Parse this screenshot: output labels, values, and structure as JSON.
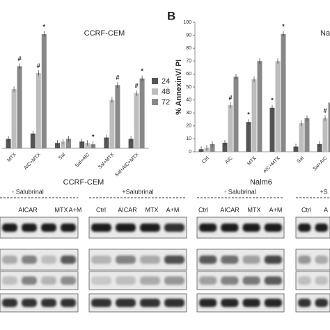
{
  "chart_data": [
    {
      "type": "bar",
      "title": "CCRF-CEM",
      "categories": [
        "MTX",
        "AIC+MTX",
        "Sal",
        "Sal+AIC",
        "Sal+MTX",
        "Sal+AIC+MTX"
      ],
      "series": [
        {
          "name": "24",
          "color": "#555555",
          "values": [
            7,
            11,
            4,
            5,
            8,
            7
          ]
        },
        {
          "name": "48",
          "color": "#bdbdbd",
          "values": [
            44,
            56,
            5,
            4,
            36,
            41
          ]
        },
        {
          "name": "72",
          "color": "#888888",
          "values": [
            61,
            85,
            7,
            3,
            47,
            52
          ]
        }
      ],
      "ylim": [
        0,
        100
      ],
      "annotations": [
        {
          "text": "#",
          "category": 0,
          "series": 2
        },
        {
          "text": "#",
          "category": 1,
          "series": 1
        },
        {
          "text": "*",
          "category": 1,
          "series": 2
        },
        {
          "text": "*",
          "category": 3,
          "series": 2
        },
        {
          "text": "#",
          "category": 4,
          "series": 2
        },
        {
          "text": "#",
          "category": 5,
          "series": 1
        },
        {
          "text": "*",
          "category": 5,
          "series": 2
        }
      ]
    },
    {
      "type": "bar",
      "panel": "B",
      "title": "Na",
      "ylabel": "% AnnexinV/ PI",
      "categories": [
        "Ctrl",
        "AIC",
        "MTX",
        "AIC+MTX",
        "Sal",
        "Sal+AIC"
      ],
      "series": [
        {
          "name": "24",
          "color": "#555555",
          "values": [
            2,
            7,
            23,
            34,
            4,
            6
          ]
        },
        {
          "name": "48",
          "color": "#bdbdbd",
          "values": [
            3,
            36,
            56,
            70,
            22,
            26
          ]
        },
        {
          "name": "72",
          "color": "#888888",
          "values": [
            6,
            58,
            70,
            91,
            26,
            38
          ]
        }
      ],
      "ylim": [
        0,
        100
      ],
      "yticks": [
        0,
        10,
        20,
        30,
        40,
        50,
        60,
        70,
        80,
        90,
        100
      ],
      "annotations": [
        {
          "text": "#",
          "category": 1,
          "series": 1
        },
        {
          "text": "*",
          "category": 2,
          "series": 0
        },
        {
          "text": "*",
          "category": 3,
          "series": 0
        },
        {
          "text": "*",
          "category": 3,
          "series": 2
        },
        {
          "text": "#",
          "category": 5,
          "series": 1
        }
      ]
    }
  ],
  "blot": {
    "left": {
      "title": "CCRF-CEM",
      "minus": "- Salubrinal",
      "plus": "+Salubrinal",
      "minus_lanes": [
        "AICAR",
        "MTX",
        "A+M"
      ],
      "plus_lanes": [
        "Ctrl",
        "AICAR",
        "MTX",
        "A+M"
      ]
    },
    "right": {
      "title": "Nalm6",
      "minus": "- Salubrinal",
      "plus": "+S",
      "minus_lanes": [
        "Ctrl",
        "AICAR",
        "MTX",
        "A+M"
      ],
      "plus_lanes": [
        "Ctrl",
        "A"
      ]
    }
  }
}
